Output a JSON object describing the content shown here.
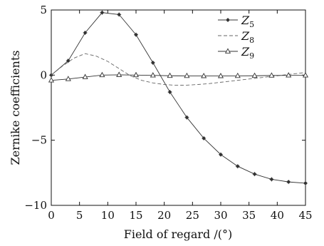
{
  "chart_data": {
    "type": "line",
    "xlabel": "Field of regard /(°)",
    "ylabel": "Zernike coefficients",
    "xlim": [
      0,
      45
    ],
    "ylim": [
      -10,
      5
    ],
    "xticks": [
      "0",
      "5",
      "10",
      "15",
      "20",
      "25",
      "30",
      "35",
      "40",
      "45"
    ],
    "yticks": [
      "5",
      "0",
      "−5",
      "−10"
    ],
    "grid": false,
    "legend_position": "top-right",
    "series": [
      {
        "name": "Z5",
        "label_main": "Z",
        "label_sub": "5",
        "style": "solid",
        "marker": "star",
        "x": [
          0,
          3,
          6,
          9,
          12,
          15,
          18,
          21,
          24,
          27,
          30,
          33,
          36,
          39,
          42,
          45
        ],
        "y": [
          0.0,
          1.1,
          3.25,
          4.8,
          4.65,
          3.1,
          0.95,
          -1.3,
          -3.25,
          -4.85,
          -6.1,
          -7.0,
          -7.6,
          -8.0,
          -8.2,
          -8.3
        ]
      },
      {
        "name": "Z8",
        "label_main": "Z",
        "label_sub": "8",
        "style": "dashed",
        "marker": "none",
        "x": [
          0,
          2,
          4,
          6,
          8,
          10,
          12,
          14,
          16,
          18,
          20,
          22,
          24,
          26,
          28,
          30,
          32,
          34,
          36,
          38,
          40,
          42,
          44,
          45
        ],
        "y": [
          0.0,
          0.7,
          1.3,
          1.65,
          1.45,
          1.05,
          0.5,
          -0.05,
          -0.4,
          -0.6,
          -0.72,
          -0.78,
          -0.77,
          -0.72,
          -0.65,
          -0.55,
          -0.45,
          -0.35,
          -0.25,
          -0.15,
          -0.05,
          0.05,
          0.15,
          0.2
        ]
      },
      {
        "name": "Z9",
        "label_main": "Z",
        "label_sub": "9",
        "style": "solid",
        "marker": "triangle",
        "x": [
          0,
          3,
          6,
          9,
          12,
          15,
          18,
          21,
          24,
          27,
          30,
          33,
          36,
          39,
          42,
          45
        ],
        "y": [
          -0.4,
          -0.3,
          -0.15,
          0.0,
          0.02,
          0.0,
          -0.02,
          -0.05,
          -0.06,
          -0.07,
          -0.07,
          -0.06,
          -0.05,
          -0.03,
          -0.02,
          -0.02
        ]
      }
    ]
  }
}
